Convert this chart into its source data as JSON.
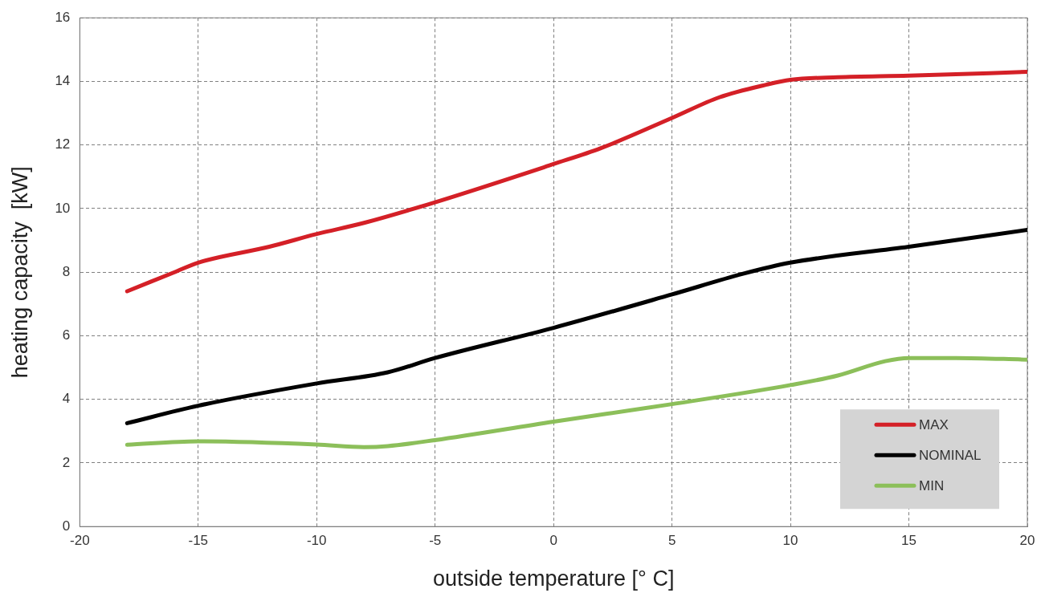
{
  "chart_data": {
    "type": "line",
    "xlabel": "outside temperature [° C]",
    "ylabel": "heating capacity  [kW]",
    "xlim": [
      -20,
      20
    ],
    "xticks": [
      -20,
      -15,
      -10,
      -5,
      0,
      5,
      10,
      15,
      20
    ],
    "ylim": [
      0,
      16
    ],
    "yticks": [
      0,
      2,
      4,
      6,
      8,
      10,
      12,
      14,
      16
    ],
    "grid": true,
    "legend": "bottom right",
    "marker": "none",
    "line_style": "solid",
    "series": [
      {
        "name": "MAX",
        "color": "#d42027",
        "x": [
          -18,
          -16,
          -15,
          -12,
          -10,
          -8,
          -5,
          0,
          2,
          5,
          7,
          9,
          10,
          12,
          15,
          20
        ],
        "values": [
          7.4,
          8.0,
          8.3,
          8.8,
          9.2,
          9.55,
          10.2,
          11.4,
          11.9,
          12.85,
          13.5,
          13.9,
          14.05,
          14.13,
          14.18,
          14.3
        ]
      },
      {
        "name": "NOMINAL",
        "color": "#000000",
        "x": [
          -18,
          -15,
          -10,
          -7,
          -5,
          0,
          5,
          8,
          10,
          15,
          20
        ],
        "values": [
          3.25,
          3.8,
          4.5,
          4.85,
          5.3,
          6.25,
          7.3,
          7.95,
          8.3,
          8.8,
          9.33
        ]
      },
      {
        "name": "MIN",
        "color": "#8cbf5a",
        "x": [
          -18,
          -15,
          -10,
          -8,
          -7,
          -5,
          0,
          5,
          10,
          12,
          14,
          15,
          17,
          20
        ],
        "values": [
          2.57,
          2.68,
          2.58,
          2.5,
          2.53,
          2.72,
          3.3,
          3.85,
          4.45,
          4.75,
          5.2,
          5.3,
          5.3,
          5.25
        ]
      }
    ]
  }
}
